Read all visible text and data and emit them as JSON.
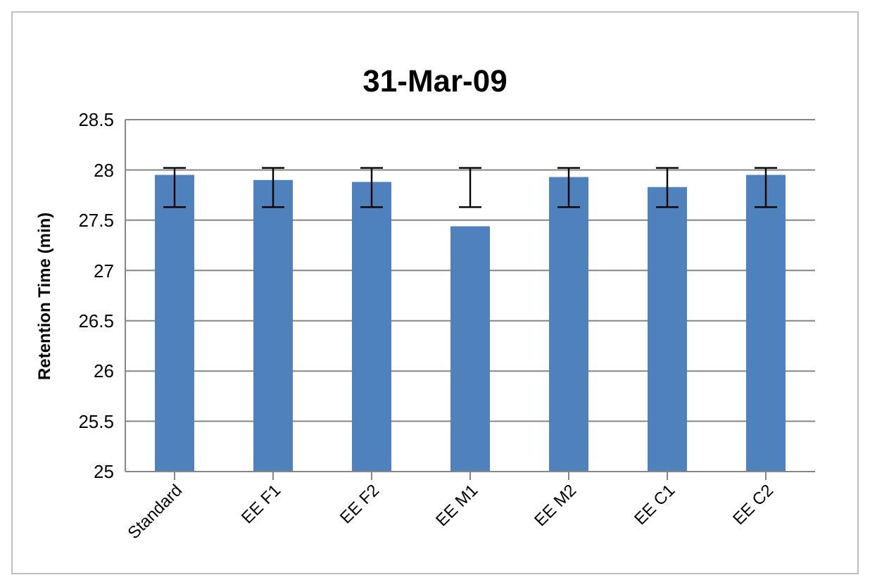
{
  "chart_data": {
    "type": "bar",
    "title": "31-Mar-09",
    "ylabel": "Retention Time (min)",
    "categories": [
      "Standard",
      "EE F1",
      "EE F2",
      "EE M1",
      "EE M2",
      "EE C1",
      "EE C2"
    ],
    "series": [
      {
        "color": "#4f81bd",
        "values": [
          27.95,
          27.9,
          27.88,
          27.44,
          27.93,
          27.83,
          27.95
        ],
        "errors": [
          [
            27.63,
            28.02
          ],
          [
            27.63,
            28.02
          ],
          [
            27.63,
            28.02
          ],
          [
            27.63,
            28.02
          ],
          [
            27.63,
            28.02
          ],
          [
            27.63,
            28.02
          ],
          [
            27.63,
            28.02
          ]
        ]
      }
    ],
    "ylim": [
      25,
      28.5
    ],
    "yticks": [
      25,
      25.5,
      26,
      26.5,
      27,
      27.5,
      28,
      28.5
    ],
    "grid": "y",
    "legend": false
  }
}
